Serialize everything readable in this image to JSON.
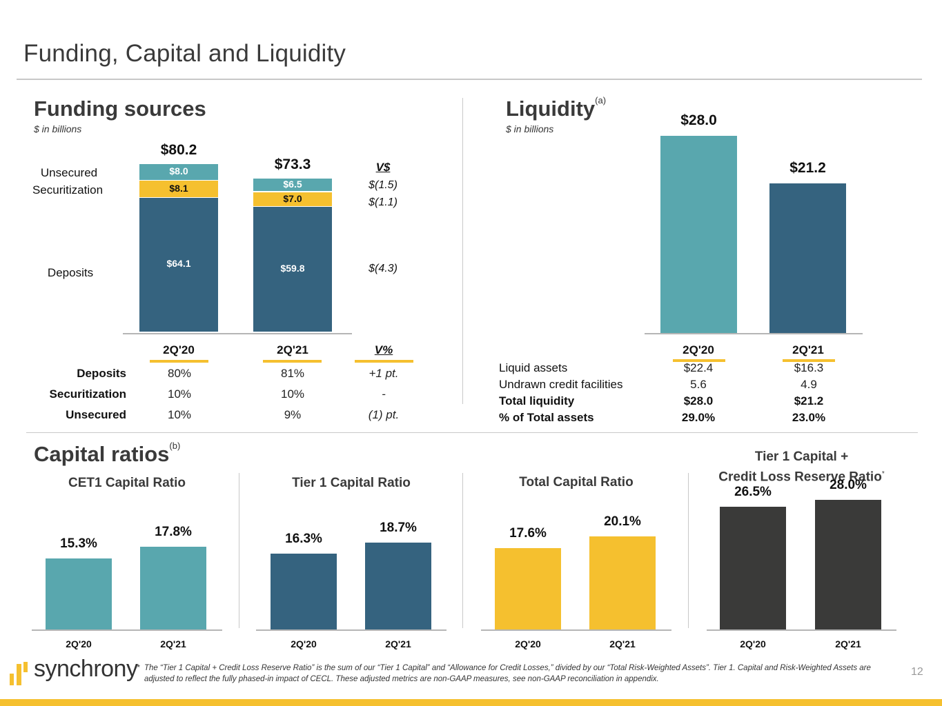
{
  "page": {
    "title": "Funding, Capital and Liquidity",
    "page_number": "12"
  },
  "colors": {
    "teal": "#59a7ae",
    "navy": "#35637f",
    "yellow": "#f5c02f",
    "charcoal": "#3a3a39"
  },
  "funding": {
    "title": "Funding sources",
    "subtitle": "$ in billions",
    "row_labels": [
      "Unsecured",
      "Securitization",
      "Deposits"
    ],
    "delta_header": "V$",
    "deltas": [
      "$(1.5)",
      "$(1.1)",
      "$(4.3)"
    ],
    "table": {
      "columns": [
        "2Q'20",
        "2Q'21",
        "V%"
      ],
      "rows": [
        {
          "label": "Deposits",
          "values": [
            "80%",
            "81%",
            "+1 pt."
          ]
        },
        {
          "label": "Securitization",
          "values": [
            "10%",
            "10%",
            "-"
          ]
        },
        {
          "label": "Unsecured",
          "values": [
            "10%",
            "9%",
            "(1) pt."
          ]
        }
      ]
    }
  },
  "liquidity": {
    "title": "Liquidity",
    "footnote_marker": "(a)",
    "subtitle": "$ in billions",
    "table": {
      "columns": [
        "2Q'20",
        "2Q'21"
      ],
      "rows": [
        {
          "label": "Liquid assets",
          "values": [
            "$22.4",
            "$16.3"
          ],
          "bold": false
        },
        {
          "label": "Undrawn credit facilities",
          "values": [
            "5.6",
            "4.9"
          ],
          "bold": false
        },
        {
          "label": "Total liquidity",
          "values": [
            "$28.0",
            "$21.2"
          ],
          "bold": true
        },
        {
          "label": "% of Total assets",
          "values": [
            "29.0%",
            "23.0%"
          ],
          "bold": true
        }
      ]
    }
  },
  "capital": {
    "title": "Capital ratios",
    "footnote_marker": "(b)"
  },
  "footer": {
    "logo_text": "synchrony",
    "footnote_asterisk": "*",
    "footnote": "The “Tier 1 Capital + Credit Loss Reserve Ratio” is the sum of our “Tier 1 Capital” and “Allowance for Credit Losses,” divided by our “Total Risk-Weighted Assets”. Tier 1. Capital and Risk-Weighted Assets are adjusted to reflect the fully phased-in impact of CECL. These adjusted metrics are non-GAAP measures, see non-GAAP reconciliation in appendix."
  },
  "chart_data": [
    {
      "type": "bar",
      "stacked": true,
      "title": "Funding sources",
      "ylabel": "$ in billions",
      "categories": [
        "2Q'20",
        "2Q'21"
      ],
      "totals": [
        "$80.2",
        "$73.3"
      ],
      "total_values": [
        80.2,
        73.3
      ],
      "series": [
        {
          "name": "Deposits",
          "values": [
            64.1,
            59.8
          ],
          "labels": [
            "$64.1",
            "$59.8"
          ],
          "color": "#35637f",
          "label_color": "#ffffff"
        },
        {
          "name": "Securitization",
          "values": [
            8.1,
            7.0
          ],
          "labels": [
            "$8.1",
            "$7.0"
          ],
          "color": "#f5c02f",
          "label_color": "#111111"
        },
        {
          "name": "Unsecured",
          "values": [
            8.0,
            6.5
          ],
          "labels": [
            "$8.0",
            "$6.5"
          ],
          "color": "#59a7ae",
          "label_color": "#ffffff"
        }
      ],
      "ylim": [
        0,
        80.2
      ]
    },
    {
      "type": "bar",
      "title": "Liquidity",
      "ylabel": "$ in billions",
      "categories": [
        "2Q'20",
        "2Q'21"
      ],
      "values": [
        28.0,
        21.2
      ],
      "labels": [
        "$28.0",
        "$21.2"
      ],
      "colors": [
        "#59a7ae",
        "#35637f"
      ],
      "ylim": [
        0,
        28.0
      ]
    },
    {
      "type": "bar",
      "title": "CET1 Capital Ratio",
      "categories": [
        "2Q'20",
        "2Q'21"
      ],
      "values": [
        15.3,
        17.8
      ],
      "labels": [
        "15.3%",
        "17.8%"
      ],
      "color": "#59a7ae",
      "ylim": [
        0,
        32
      ]
    },
    {
      "type": "bar",
      "title": "Tier 1 Capital Ratio",
      "categories": [
        "2Q'20",
        "2Q'21"
      ],
      "values": [
        16.3,
        18.7
      ],
      "labels": [
        "16.3%",
        "18.7%"
      ],
      "color": "#35637f",
      "ylim": [
        0,
        32
      ]
    },
    {
      "type": "bar",
      "title": "Total Capital Ratio",
      "categories": [
        "2Q'20",
        "2Q'21"
      ],
      "values": [
        17.6,
        20.1
      ],
      "labels": [
        "17.6%",
        "20.1%"
      ],
      "color": "#f5c02f",
      "ylim": [
        0,
        32
      ]
    },
    {
      "type": "bar",
      "title": "Tier 1 Capital + Credit Loss Reserve Ratio",
      "title_lines": [
        "Tier 1 Capital +",
        "Credit Loss Reserve Ratio"
      ],
      "title_marker": "*",
      "categories": [
        "2Q'20",
        "2Q'21"
      ],
      "values": [
        26.5,
        28.0
      ],
      "labels": [
        "26.5%",
        "28.0%"
      ],
      "color": "#3a3a39",
      "ylim": [
        0,
        35
      ]
    }
  ]
}
